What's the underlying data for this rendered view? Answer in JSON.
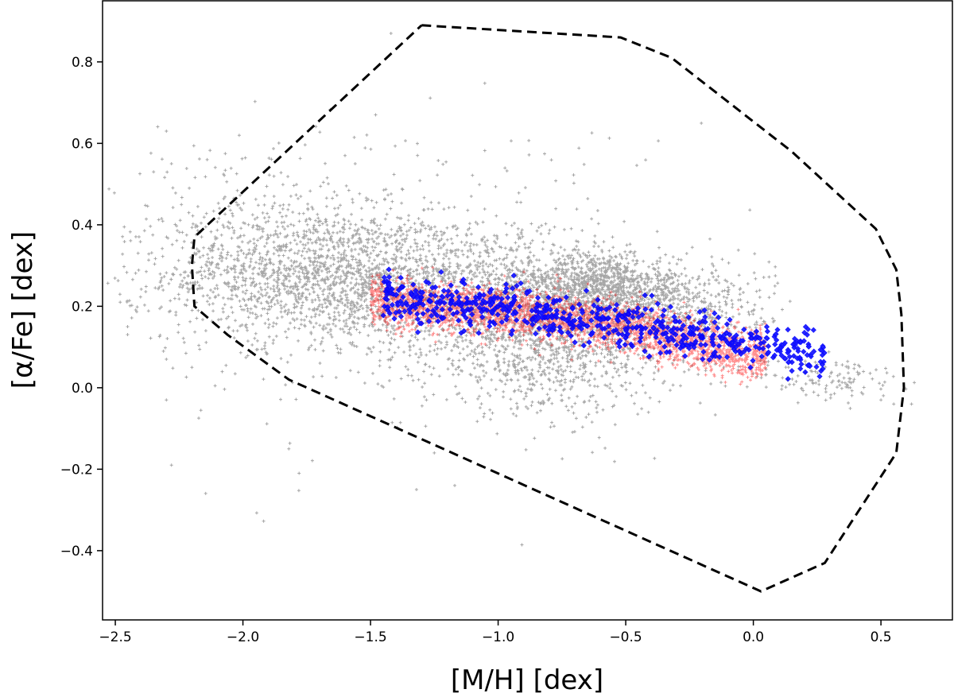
{
  "chart_data": {
    "type": "scatter",
    "title": "",
    "xlabel": "[M/H] [dex]",
    "ylabel": "[α/Fe] [dex]",
    "xlim": [
      -2.55,
      0.78
    ],
    "ylim": [
      -0.57,
      0.95
    ],
    "xticks": [
      -2.5,
      -2.0,
      -1.5,
      -1.0,
      -0.5,
      0.0,
      0.5
    ],
    "xtick_labels": [
      "−2.5",
      "−2.0",
      "−1.5",
      "−1.0",
      "−0.5",
      "0.0",
      "0.5"
    ],
    "yticks": [
      -0.4,
      -0.2,
      0.0,
      0.2,
      0.4,
      0.6,
      0.8
    ],
    "ytick_labels": [
      "−0.4",
      "−0.2",
      "0.0",
      "0.2",
      "0.4",
      "0.6",
      "0.8"
    ],
    "grid": false,
    "legend": "none",
    "boundary": {
      "style": "dashed",
      "color": "#000000",
      "x": [
        -1.3,
        -0.52,
        -0.32,
        0.15,
        0.48,
        0.56,
        0.58,
        0.59,
        0.56,
        0.28,
        0.03,
        -1.82,
        -2.06,
        -2.19,
        -2.2,
        -2.19,
        -1.3
      ],
      "y": [
        0.89,
        0.86,
        0.81,
        0.58,
        0.39,
        0.29,
        0.18,
        0.0,
        -0.16,
        -0.43,
        -0.5,
        0.02,
        0.13,
        0.2,
        0.3,
        0.37,
        0.89
      ]
    },
    "series": [
      {
        "color": "#000000",
        "marker": "+",
        "size": "small",
        "opacity": 0.35,
        "clusters": [
          {
            "cx": -1.7,
            "cy": 0.28,
            "sx": 0.3,
            "sy": 0.08,
            "n": 1400
          },
          {
            "cx": -1.1,
            "cy": 0.24,
            "sx": 0.3,
            "sy": 0.09,
            "n": 1100
          },
          {
            "cx": -0.8,
            "cy": 0.1,
            "sx": 0.25,
            "sy": 0.08,
            "n": 1000
          },
          {
            "cx": -0.6,
            "cy": 0.25,
            "sx": 0.15,
            "sy": 0.04,
            "n": 900
          },
          {
            "cx": -0.3,
            "cy": 0.2,
            "sx": 0.18,
            "sy": 0.05,
            "n": 500
          },
          {
            "cx": 0.3,
            "cy": 0.02,
            "sx": 0.15,
            "sy": 0.03,
            "n": 130
          },
          {
            "cx": -2.0,
            "cy": 0.35,
            "sx": 0.25,
            "sy": 0.12,
            "n": 300
          },
          {
            "cx": -1.5,
            "cy": 0.3,
            "sx": 0.6,
            "sy": 0.2,
            "n": 300
          }
        ],
        "outliers": [
          [
            -1.42,
            0.87
          ],
          [
            -2.3,
            0.63
          ],
          [
            -2.28,
            0.55
          ],
          [
            -2.35,
            0.53
          ],
          [
            -1.48,
            0.67
          ],
          [
            -2.14,
            0.56
          ],
          [
            -1.6,
            0.57
          ],
          [
            -1.56,
            0.55
          ],
          [
            -2.28,
            -0.19
          ],
          [
            -2.3,
            -0.03
          ],
          [
            -1.78,
            -0.21
          ],
          [
            -1.82,
            -0.15
          ],
          [
            -1.25,
            -0.16
          ],
          [
            -1.17,
            -0.24
          ],
          [
            -1.32,
            -0.25
          ],
          [
            -2.3,
            0.07
          ],
          [
            -2.2,
            0.05
          ],
          [
            0.62,
            -0.04
          ],
          [
            0.55,
            -0.04
          ],
          [
            0.5,
            -0.03
          ]
        ]
      },
      {
        "color": "#ff0000",
        "marker": "+",
        "size": "small",
        "opacity": 0.45,
        "x_range": [
          -1.5,
          0.05
        ],
        "trend": {
          "x": [
            -1.5,
            -1.0,
            -0.5,
            0.0
          ],
          "y": [
            0.21,
            0.19,
            0.15,
            0.08
          ]
        },
        "scatter_y": 0.03,
        "n": 3200
      },
      {
        "color": "#0000ff",
        "marker": "diamond",
        "size": "small",
        "opacity": 0.85,
        "x_range": [
          -1.45,
          0.28
        ],
        "trend": {
          "x": [
            -1.45,
            -1.0,
            -0.5,
            0.0,
            0.28
          ],
          "y": [
            0.22,
            0.2,
            0.15,
            0.11,
            0.08
          ]
        },
        "scatter_y": 0.03,
        "n": 650
      }
    ]
  }
}
